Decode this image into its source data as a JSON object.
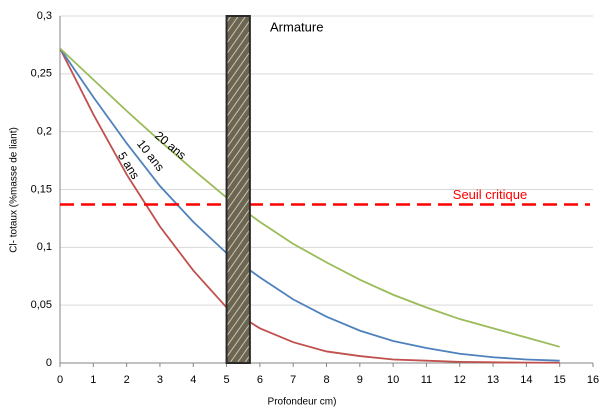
{
  "chart_data": {
    "type": "line",
    "x_label": "Profondeur cm)",
    "y_label": "Cl- totaux (%masse de liant)",
    "x": [
      0,
      1,
      2,
      3,
      4,
      5,
      6,
      7,
      8,
      9,
      10,
      11,
      12,
      13,
      14,
      15
    ],
    "series": [
      {
        "name": "5 ans",
        "color": "#c0504d",
        "values": [
          0.272,
          0.215,
          0.163,
          0.118,
          0.08,
          0.048,
          0.03,
          0.018,
          0.01,
          0.006,
          0.003,
          0.002,
          0.001,
          0.0006,
          0.0003,
          0.0002
        ]
      },
      {
        "name": "10 ans",
        "color": "#4f81bd",
        "values": [
          0.272,
          0.23,
          0.19,
          0.153,
          0.122,
          0.095,
          0.074,
          0.055,
          0.04,
          0.028,
          0.019,
          0.013,
          0.008,
          0.005,
          0.003,
          0.002
        ]
      },
      {
        "name": "20 ans",
        "color": "#9bbb59",
        "values": [
          0.272,
          0.245,
          0.218,
          0.192,
          0.167,
          0.143,
          0.122,
          0.103,
          0.087,
          0.072,
          0.059,
          0.048,
          0.038,
          0.03,
          0.022,
          0.014
        ]
      }
    ],
    "threshold": {
      "label": "Seuil critique",
      "value": 0.137,
      "color": "#ff0000"
    },
    "rebar": {
      "label": "Armature",
      "x": [
        5,
        5.7
      ]
    },
    "xlim": [
      0,
      16
    ],
    "xticks": [
      0,
      1,
      2,
      3,
      4,
      5,
      6,
      7,
      8,
      9,
      10,
      11,
      12,
      13,
      14,
      15,
      16
    ],
    "ylim": [
      0,
      0.3
    ],
    "yticks": [
      0,
      {
        "value": 0.05,
        "label": "0,05"
      },
      {
        "value": 0.1,
        "label": "0,1"
      },
      {
        "value": 0.15,
        "label": "0,15"
      },
      {
        "value": 0.2,
        "label": "0,2"
      },
      {
        "value": 0.25,
        "label": "0,25"
      },
      {
        "value": 0.3,
        "label": "0,3"
      }
    ],
    "grid": true
  }
}
